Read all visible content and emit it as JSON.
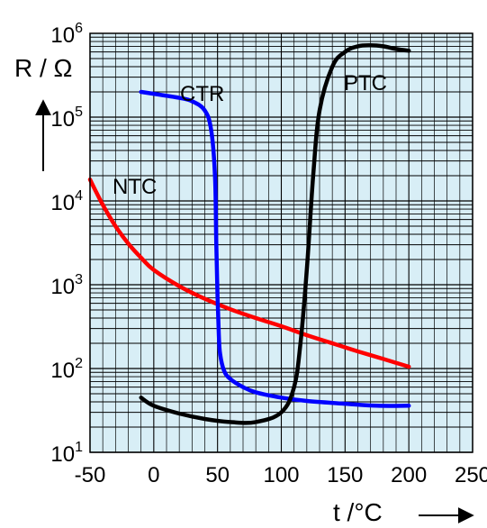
{
  "chart_data": {
    "type": "line",
    "title": "",
    "ylabel": "R / Ω",
    "xlabel": "t /°C",
    "yscale": "log",
    "xlim": [
      -50,
      250
    ],
    "ylim": [
      10,
      1000000
    ],
    "grid": true,
    "legend": "none",
    "background": "#d8eef6",
    "x_ticks": [
      -50,
      0,
      50,
      100,
      150,
      200,
      250
    ],
    "x_tick_labels": [
      "-50",
      "0",
      "50",
      "100",
      "150",
      "200",
      "250"
    ],
    "y_ticks": [
      10,
      100,
      1000,
      10000,
      100000,
      1000000
    ],
    "y_tick_labels": [
      {
        "base": "10",
        "exp": "1"
      },
      {
        "base": "10",
        "exp": "2"
      },
      {
        "base": "10",
        "exp": "3"
      },
      {
        "base": "10",
        "exp": "4"
      },
      {
        "base": "10",
        "exp": "5"
      },
      {
        "base": "10",
        "exp": "6"
      }
    ],
    "series": [
      {
        "name": "NTC",
        "color": "#ff0000",
        "x": [
          -50,
          -40,
          -30,
          -20,
          -10,
          0,
          20,
          40,
          60,
          80,
          100,
          120,
          140,
          160,
          180,
          200
        ],
        "y": [
          18000,
          9000,
          5000,
          3100,
          2100,
          1500,
          960,
          680,
          510,
          400,
          320,
          250,
          200,
          160,
          130,
          105
        ]
      },
      {
        "name": "CTR",
        "color": "#0000ff",
        "x": [
          -10,
          0,
          10,
          20,
          30,
          40,
          45,
          48,
          49,
          50,
          51,
          52,
          55,
          60,
          70,
          80,
          100,
          120,
          150,
          175,
          200
        ],
        "y": [
          200000,
          190000,
          180000,
          170000,
          155000,
          120000,
          70000,
          20000,
          3000,
          700,
          250,
          150,
          95,
          75,
          60,
          52,
          45,
          41,
          38,
          36,
          36
        ]
      },
      {
        "name": "PTC",
        "color": "#000000",
        "x": [
          -10,
          0,
          20,
          40,
          60,
          80,
          100,
          110,
          115,
          120,
          125,
          130,
          140,
          150,
          160,
          170,
          180,
          190,
          200
        ],
        "y": [
          45,
          36,
          29,
          25,
          23,
          23,
          30,
          60,
          200,
          1500,
          20000,
          120000,
          400000,
          600000,
          700000,
          720000,
          700000,
          650000,
          620000
        ]
      }
    ]
  }
}
